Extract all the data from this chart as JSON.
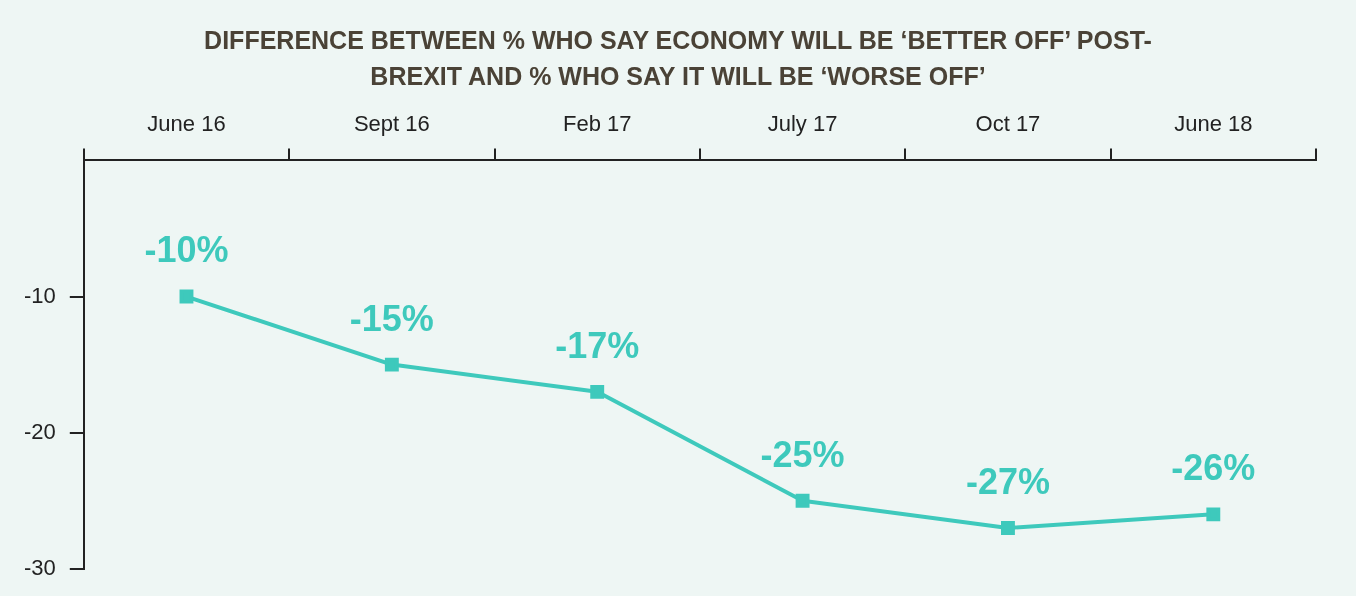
{
  "chart_data": {
    "type": "line",
    "title": "DIFFERENCE BETWEEN % WHO SAY ECONOMY WILL BE ‘BETTER OFF’ POST-BREXIT AND % WHO SAY IT WILL BE ‘WORSE OFF’",
    "categories": [
      "June 16",
      "Sept 16",
      "Feb 17",
      "July 17",
      "Oct 17",
      "June 18"
    ],
    "series": [
      {
        "color": "#3ec9bc",
        "values": [
          -10,
          -15,
          -17,
          -25,
          -27,
          -26
        ],
        "value_labels": [
          "-10%",
          "-15%",
          "-17%",
          "-25%",
          "-27%",
          "-26%"
        ]
      }
    ],
    "ylim": [
      -30,
      0
    ],
    "yticks": [
      -30,
      -20,
      -10
    ],
    "marker": "square",
    "line_style": "solid",
    "grid": false,
    "legend": false
  }
}
